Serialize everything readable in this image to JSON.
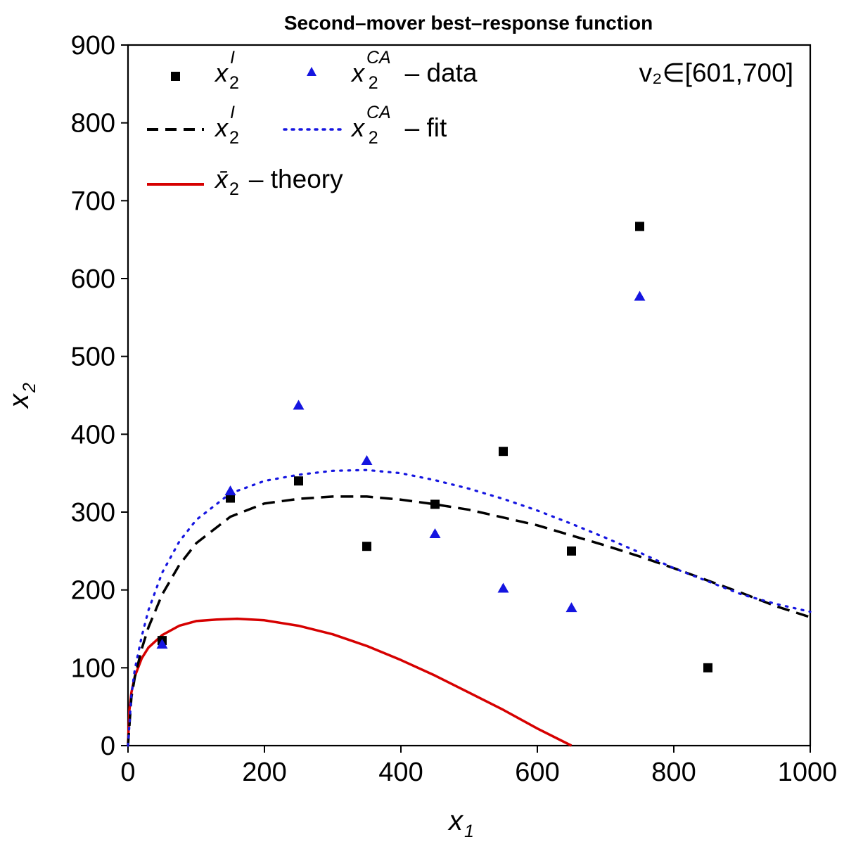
{
  "chart_data": {
    "type": "scatter",
    "title": "Second–mover best–response function",
    "xlabel": "x",
    "xlabel_sub": "1",
    "ylabel": "x",
    "ylabel_sub": "2",
    "xlim": [
      0,
      1000
    ],
    "ylim": [
      0,
      900
    ],
    "x_ticks": [
      0,
      200,
      400,
      600,
      800,
      1000
    ],
    "y_ticks": [
      0,
      100,
      200,
      300,
      400,
      500,
      600,
      700,
      800,
      900
    ],
    "annotation": "v₂∈[601,700]",
    "series": [
      {
        "name": "x2_I_data",
        "kind": "scatter",
        "marker": "square",
        "color": "#000000",
        "x": [
          50,
          150,
          250,
          350,
          450,
          550,
          650,
          750,
          850
        ],
        "y": [
          135,
          318,
          340,
          256,
          310,
          378,
          250,
          667,
          100
        ]
      },
      {
        "name": "x2_CA_data",
        "kind": "scatter",
        "marker": "triangle",
        "color": "#1515e0",
        "x": [
          50,
          150,
          250,
          350,
          450,
          550,
          650,
          750
        ],
        "y": [
          130,
          327,
          437,
          366,
          272,
          202,
          177,
          577
        ]
      },
      {
        "name": "x2_I_fit",
        "kind": "line",
        "style": "dashed",
        "color": "#000000",
        "x": [
          0,
          5,
          10,
          20,
          30,
          50,
          75,
          100,
          150,
          200,
          250,
          300,
          350,
          400,
          450,
          500,
          550,
          600,
          650,
          700,
          750,
          800,
          850,
          900,
          950,
          1000
        ],
        "y": [
          0,
          62,
          88,
          124,
          152,
          194,
          232,
          260,
          294,
          311,
          317,
          320,
          320,
          316,
          310,
          303,
          293,
          283,
          270,
          257,
          243,
          228,
          212,
          196,
          179,
          165
        ]
      },
      {
        "name": "x2_CA_fit",
        "kind": "line",
        "style": "dotted",
        "color": "#1515e0",
        "x": [
          0,
          5,
          10,
          20,
          30,
          50,
          75,
          100,
          150,
          200,
          250,
          300,
          350,
          400,
          450,
          500,
          550,
          600,
          650,
          700,
          750,
          800,
          850,
          900,
          950,
          1000
        ],
        "y": [
          0,
          65,
          98,
          140,
          174,
          222,
          262,
          290,
          324,
          340,
          348,
          353,
          354,
          350,
          341,
          330,
          317,
          302,
          285,
          267,
          248,
          228,
          211,
          194,
          182,
          172
        ]
      },
      {
        "name": "x2_bar_theory",
        "kind": "line",
        "style": "solid",
        "color": "#d60000",
        "x": [
          0,
          2,
          5,
          10,
          20,
          30,
          50,
          75,
          100,
          130,
          160,
          200,
          250,
          300,
          350,
          400,
          450,
          500,
          550,
          600,
          650
        ],
        "y": [
          0,
          45,
          68,
          89,
          112,
          126,
          142,
          154,
          160,
          162,
          163,
          161,
          154,
          143,
          128,
          110,
          90,
          68,
          46,
          22,
          0
        ]
      }
    ],
    "legend": {
      "position": "top-left",
      "entries": [
        {
          "series": "x2_I_data",
          "sym": "x",
          "sub": "2",
          "sup": "I",
          "text": ""
        },
        {
          "series": "x2_CA_data",
          "sym": "x",
          "sub": "2",
          "sup": "CA",
          "text": "– data"
        },
        {
          "series": "x2_I_fit",
          "sym": "x",
          "sub": "2",
          "sup": "I",
          "text": ""
        },
        {
          "series": "x2_CA_fit",
          "sym": "x",
          "sub": "2",
          "sup": "CA",
          "text": "– fit"
        },
        {
          "series": "x2_bar_theory",
          "sym": "x̄",
          "sub": "2",
          "sup": "",
          "text": "– theory"
        }
      ]
    }
  }
}
